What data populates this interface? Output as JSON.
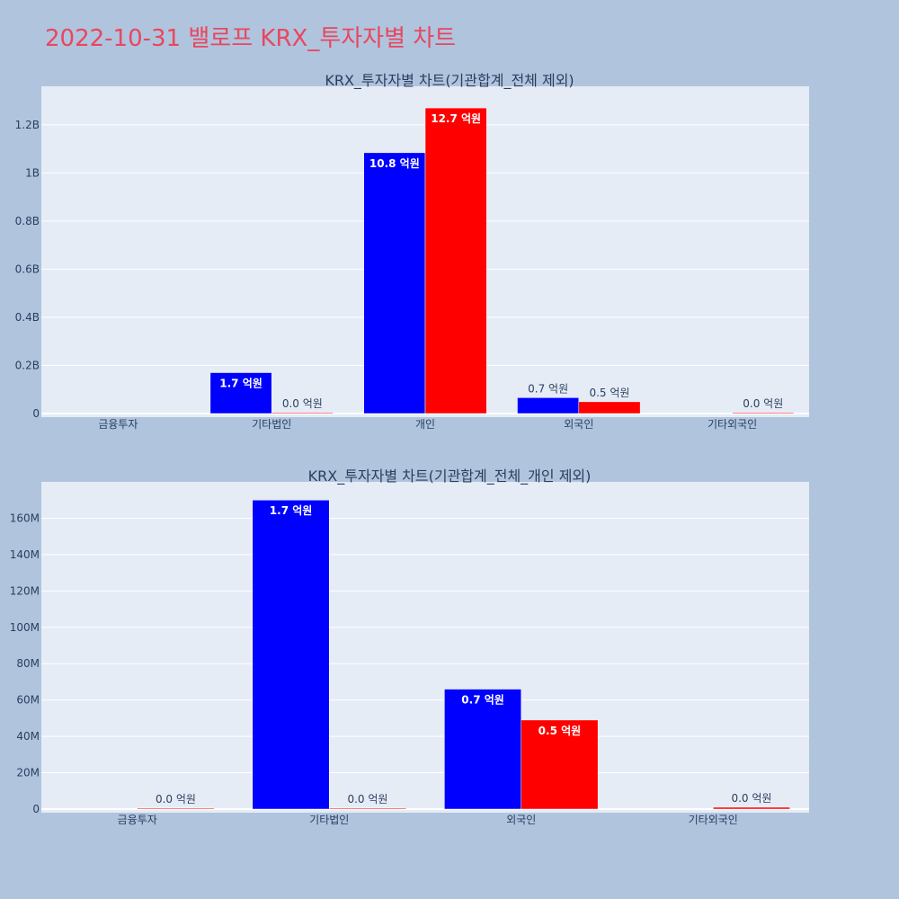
{
  "title": "2022-10-31 밸로프 KRX_투자자별 차트",
  "colors": {
    "background": "#b0c4de",
    "plot_bg": "#e5ecf6",
    "title": "#e8475f",
    "series_a": "#0000ff",
    "series_b": "#ff0000",
    "text": "#2a3f5f"
  },
  "chart_data": [
    {
      "type": "bar",
      "title": "KRX_투자자별 차트(기관합계_전체 제외)",
      "categories": [
        "금융투자",
        "기타법인",
        "개인",
        "외국인",
        "기타외국인"
      ],
      "series": [
        {
          "values": [
            0,
            170000000,
            1084000000,
            66000000,
            0
          ],
          "labels": [
            "",
            "1.7 억원",
            "10.8 억원",
            "0.7 억원",
            ""
          ]
        },
        {
          "values": [
            0,
            500000,
            1270000000,
            49000000,
            1000000
          ],
          "labels": [
            "",
            "0.0 억원",
            "12.7 억원",
            "0.5 억원",
            "0.0 억원"
          ]
        }
      ],
      "ylim": [
        0,
        1360000000
      ],
      "yticks": [
        0,
        200000000,
        400000000,
        600000000,
        800000000,
        1000000000,
        1200000000
      ],
      "ytick_labels": [
        "0",
        "0.2B",
        "0.4B",
        "0.6B",
        "0.8B",
        "1B",
        "1.2B"
      ],
      "grid": true
    },
    {
      "type": "bar",
      "title": "KRX_투자자별 차트(기관합계_전체_개인 제외)",
      "categories": [
        "금융투자",
        "기타법인",
        "외국인",
        "기타외국인"
      ],
      "series": [
        {
          "values": [
            0,
            170000000,
            66000000,
            0
          ],
          "labels": [
            "",
            "1.7 억원",
            "0.7 억원",
            ""
          ]
        },
        {
          "values": [
            400000,
            500000,
            49000000,
            1000000
          ],
          "labels": [
            "0.0 억원",
            "0.0 억원",
            "0.5 억원",
            "0.0 억원"
          ]
        }
      ],
      "ylim": [
        0,
        180000000
      ],
      "yticks": [
        0,
        20000000,
        40000000,
        60000000,
        80000000,
        100000000,
        120000000,
        140000000,
        160000000
      ],
      "ytick_labels": [
        "0",
        "20M",
        "40M",
        "60M",
        "80M",
        "100M",
        "120M",
        "140M",
        "160M"
      ],
      "grid": true
    }
  ]
}
